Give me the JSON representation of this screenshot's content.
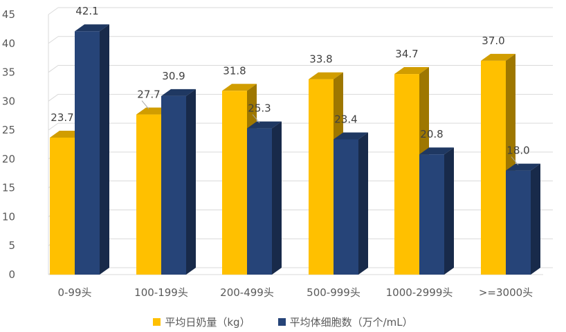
{
  "chart_data": {
    "type": "bar",
    "categories": [
      "0-99头",
      "100-199头",
      "200-499头",
      "500-999头",
      "1000-2999头",
      ">=3000头"
    ],
    "series": [
      {
        "name": "平均日奶量（kg）",
        "values": [
          23.7,
          27.7,
          31.8,
          33.8,
          34.7,
          37.0
        ],
        "labels": [
          "23.7",
          "27.7",
          "31.8",
          "33.8",
          "34.7",
          "37.0"
        ],
        "color": "#FFC000"
      },
      {
        "name": "平均体细胞数（万个/mL）",
        "values": [
          42.1,
          30.9,
          25.3,
          23.4,
          20.8,
          18.0
        ],
        "labels": [
          "42.1",
          "30.9",
          "25.3",
          "23.4",
          "20.8",
          "18.0"
        ],
        "color": "#264478"
      }
    ],
    "yticks": [
      "0",
      "5",
      "10",
      "15",
      "20",
      "25",
      "30",
      "35",
      "40",
      "45"
    ],
    "ylim": [
      0,
      45
    ],
    "grid": true,
    "legend_position": "bottom",
    "style": "3d-clustered-column"
  }
}
